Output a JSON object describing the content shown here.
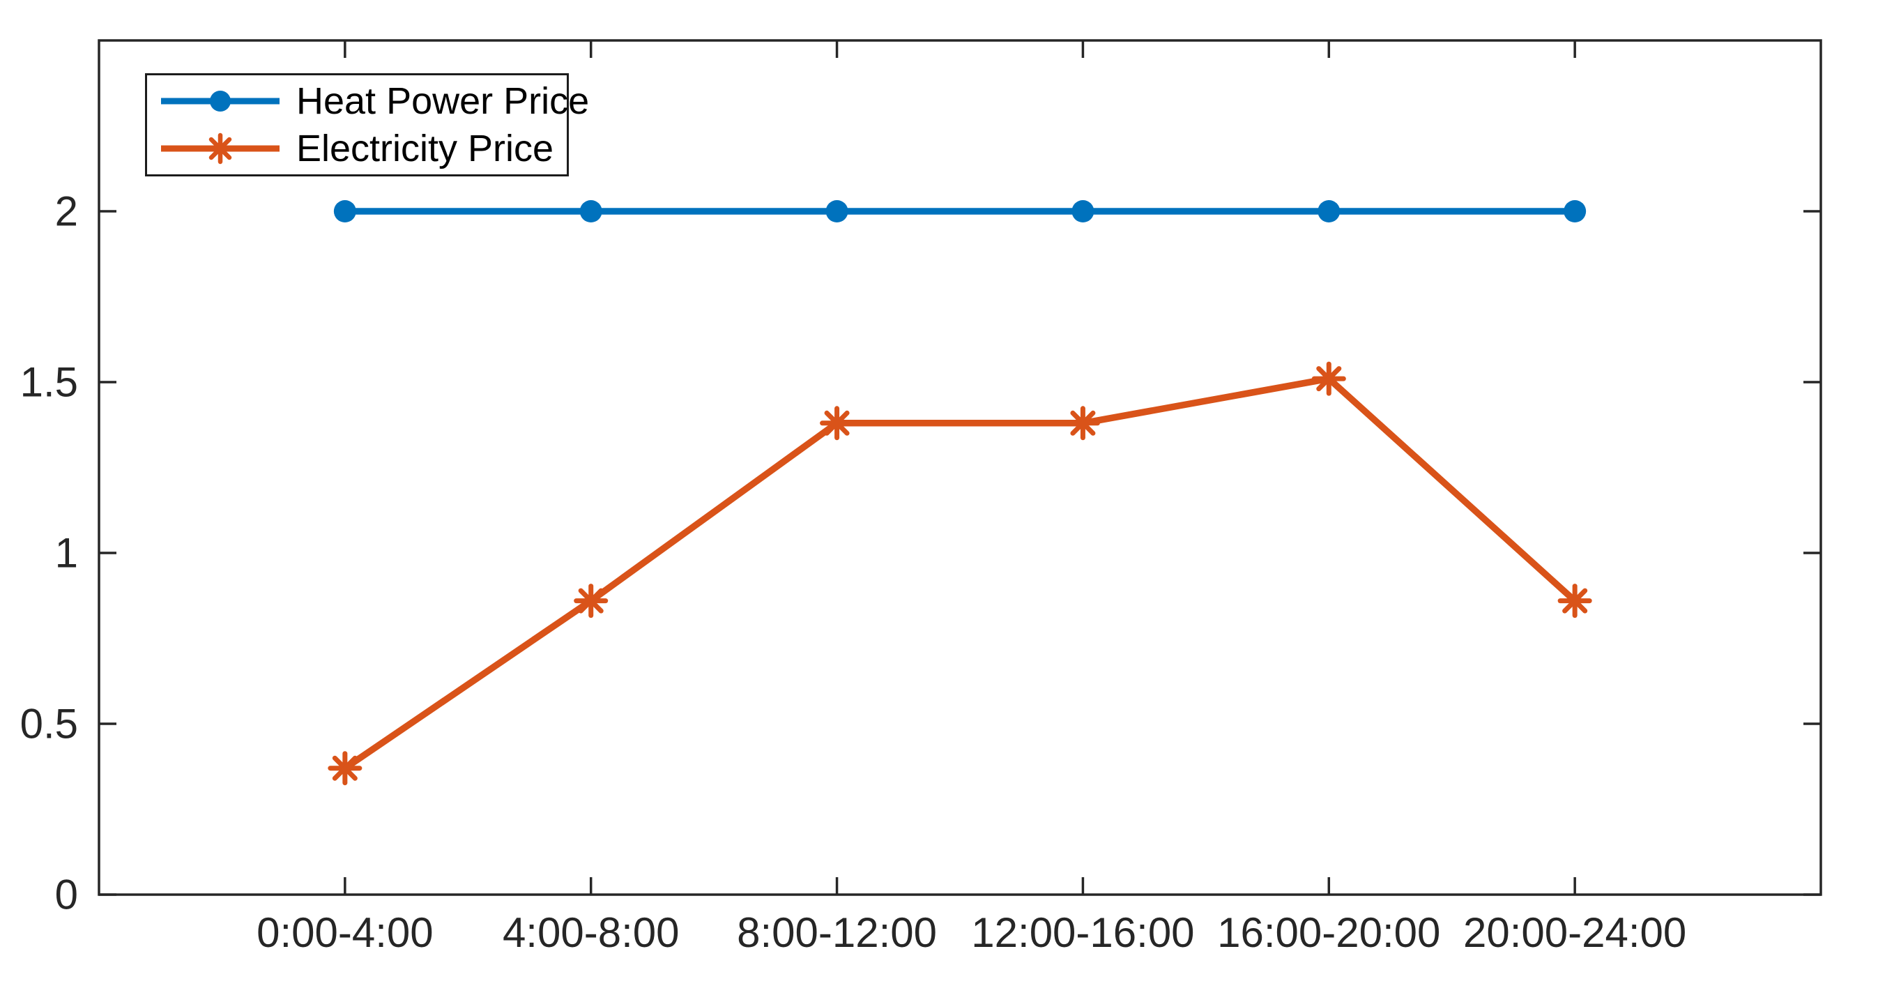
{
  "figure": {
    "background": "#ffffff",
    "axis_color": "#262626",
    "tick_label_color": "#262626",
    "legend_border_color": "#1c1c1c",
    "legend_background": "#ffffff"
  },
  "chart_data": {
    "type": "line",
    "categories": [
      "0:00-4:00",
      "4:00-8:00",
      "8:00-12:00",
      "12:00-16:00",
      "16:00-20:00",
      "20:00-24:00"
    ],
    "series": [
      {
        "name": "Heat Power Price",
        "values": [
          2,
          2,
          2,
          2,
          2,
          2
        ],
        "color": "#0072BD",
        "marker": "circle"
      },
      {
        "name": "Electricity Price",
        "values": [
          0.37,
          0.86,
          1.38,
          1.38,
          1.51,
          0.86
        ],
        "color": "#D95319",
        "marker": "asterisk"
      }
    ],
    "yticks": [
      0,
      0.5,
      1,
      1.5,
      2
    ],
    "ytick_labels": [
      "0",
      "0.5",
      "1",
      "1.5",
      "2"
    ],
    "ylim": [
      0,
      2.5
    ],
    "grid": false,
    "legend_position": "top-left",
    "box": true,
    "tick_direction": "in"
  }
}
